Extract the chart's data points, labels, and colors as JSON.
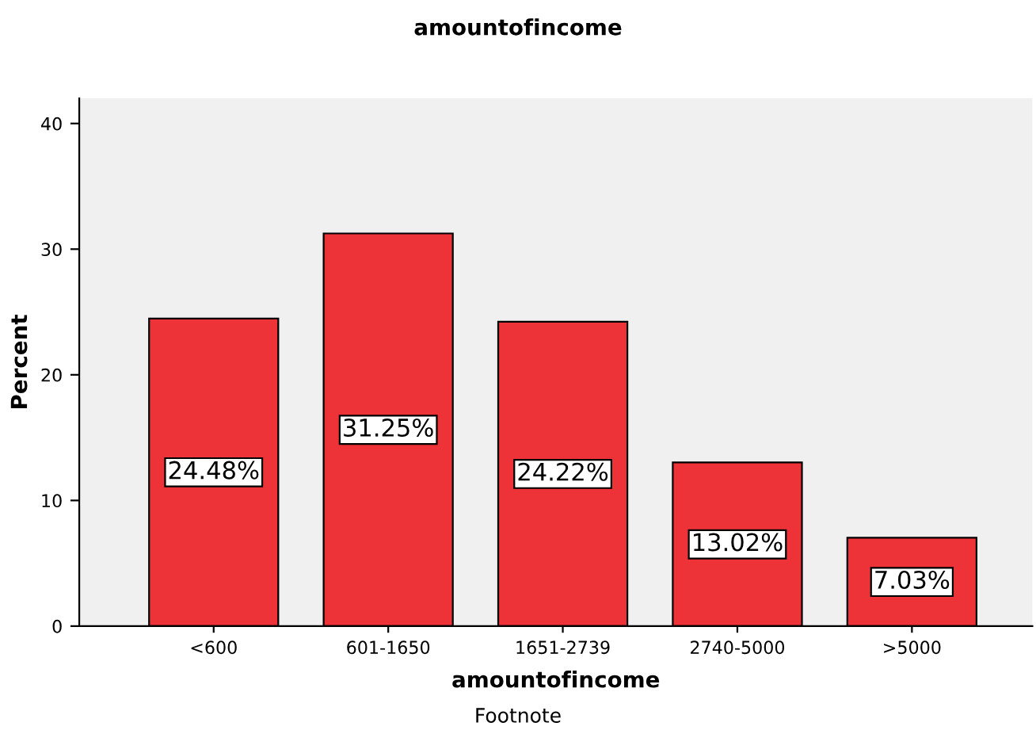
{
  "chart_data": {
    "type": "bar",
    "title": "amountofincome",
    "xlabel": "amountofincome",
    "ylabel": "Percent",
    "categories": [
      "<600",
      "601-1650",
      "1651-2739",
      "2740-5000",
      ">5000"
    ],
    "values": [
      24.48,
      31.25,
      24.22,
      13.02,
      7.03
    ],
    "value_labels": [
      "24.48%",
      "31.25%",
      "24.22%",
      "13.02%",
      "7.03%"
    ],
    "color": "#ee3338",
    "ylim": [
      0,
      42
    ],
    "yticks": [
      0,
      10,
      20,
      30,
      40
    ],
    "grid": false,
    "legend": false,
    "annotations": [
      "Footnote"
    ]
  }
}
